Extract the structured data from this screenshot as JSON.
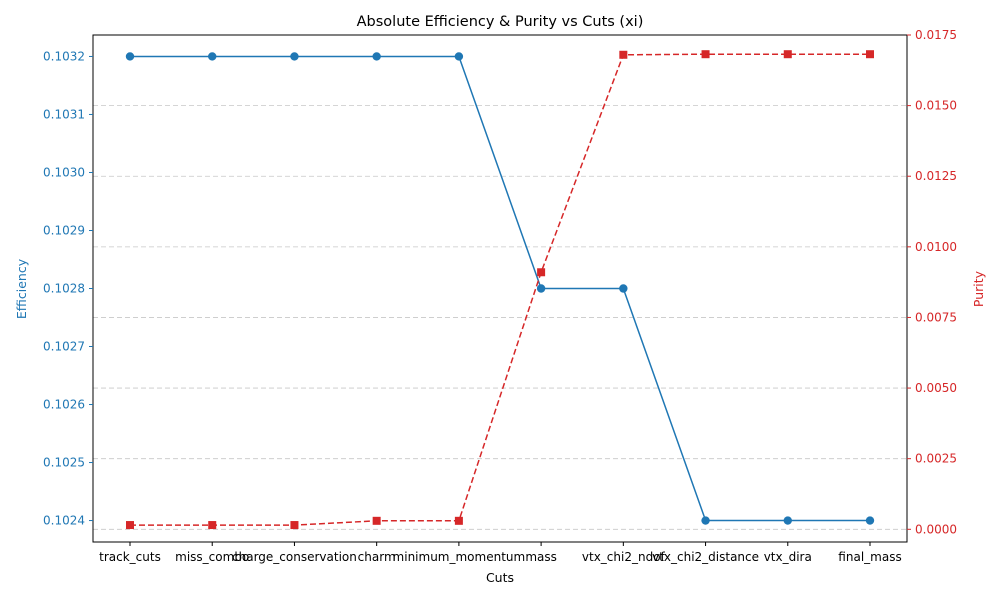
{
  "chart_data": {
    "type": "line",
    "title": "Absolute Efficiency & Purity vs Cuts (xi)",
    "xlabel": "Cuts",
    "ylabel_left": "Efficiency",
    "ylabel_right": "Purity",
    "categories": [
      "track_cuts",
      "miss_combo",
      "charge_conservation",
      "charm",
      "minimum_momentum",
      "mass",
      "vtx_chi2_ndof",
      "vtx_chi2_distance",
      "vtx_dira",
      "final_mass"
    ],
    "series": [
      {
        "name": "",
        "axis": "left",
        "color": "#1f77b4",
        "linestyle": "solid",
        "marker": "circle",
        "values": [
          0.1032,
          0.1032,
          0.1032,
          0.1032,
          0.1032,
          0.1028,
          0.1028,
          0.1024,
          0.1024,
          0.1024
        ]
      },
      {
        "name": "",
        "axis": "right",
        "color": "#d62728",
        "linestyle": "dashed",
        "marker": "square",
        "values": [
          0.00015,
          0.00015,
          0.00015,
          0.0003,
          0.0003,
          0.0091,
          0.0168,
          0.01682,
          0.01682,
          0.01682
        ]
      }
    ],
    "ylim_left": [
      0.102363,
      0.103237
    ],
    "ylim_right": [
      -0.00045,
      0.0175
    ],
    "yticks_left": [
      "0.1024",
      "0.1025",
      "0.1026",
      "0.1027",
      "0.1028",
      "0.1029",
      "0.1030",
      "0.1031",
      "0.1032"
    ],
    "yticks_right": [
      "0.0000",
      "0.0025",
      "0.0050",
      "0.0075",
      "0.0100",
      "0.0125",
      "0.0150",
      "0.0175"
    ],
    "grid": "horizontal dashed"
  }
}
